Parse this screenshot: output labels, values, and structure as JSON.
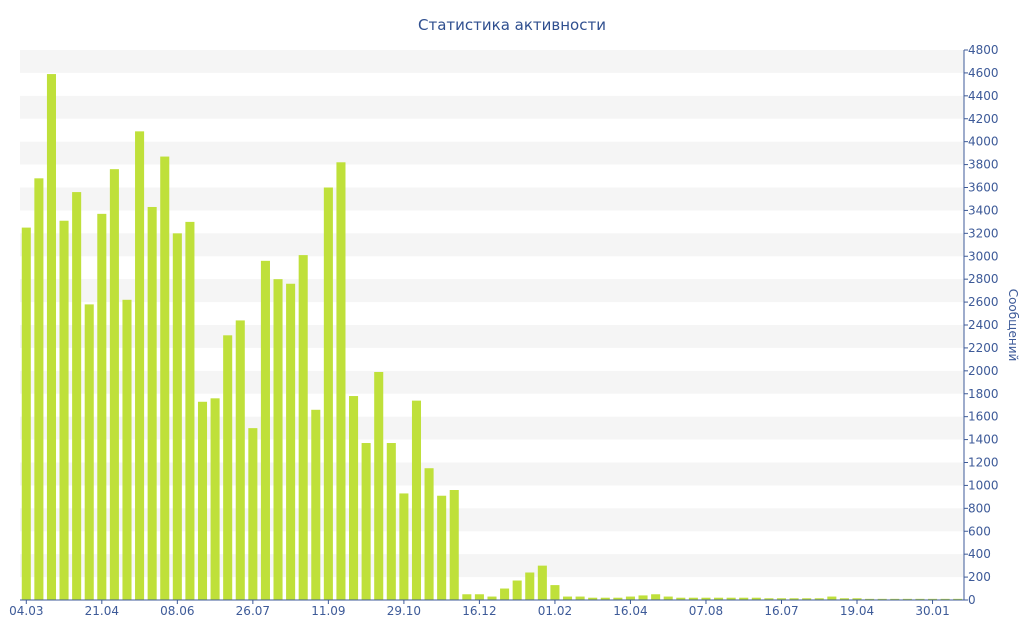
{
  "chart_data": {
    "type": "bar",
    "title": "Статистика активности",
    "ylabel": "Сообщений",
    "xlabel": "",
    "ylim": [
      0,
      4800
    ],
    "y_ticks": [
      0,
      200,
      400,
      600,
      800,
      1000,
      1200,
      1400,
      1600,
      1800,
      2000,
      2200,
      2400,
      2600,
      2800,
      3000,
      3200,
      3400,
      3600,
      3800,
      4000,
      4200,
      4400,
      4600,
      4800
    ],
    "x_tick_labels": [
      {
        "index": 0,
        "label": "04.03"
      },
      {
        "index": 6,
        "label": "21.04"
      },
      {
        "index": 12,
        "label": "08.06"
      },
      {
        "index": 18,
        "label": "26.07"
      },
      {
        "index": 24,
        "label": "11.09"
      },
      {
        "index": 30,
        "label": "29.10"
      },
      {
        "index": 36,
        "label": "16.12"
      },
      {
        "index": 42,
        "label": "01.02"
      },
      {
        "index": 48,
        "label": "16.04"
      },
      {
        "index": 54,
        "label": "07.08"
      },
      {
        "index": 60,
        "label": "16.07"
      },
      {
        "index": 66,
        "label": "19.04"
      },
      {
        "index": 72,
        "label": "30.01"
      }
    ],
    "values": [
      3250,
      3680,
      4590,
      3310,
      3560,
      2580,
      3370,
      3760,
      2620,
      4090,
      3430,
      3870,
      3200,
      3300,
      1730,
      1760,
      2310,
      2440,
      1500,
      2960,
      2800,
      2760,
      3010,
      1660,
      3600,
      3820,
      1780,
      1370,
      1990,
      1370,
      930,
      1740,
      1150,
      910,
      960,
      50,
      50,
      30,
      100,
      170,
      240,
      300,
      130,
      30,
      30,
      20,
      20,
      20,
      30,
      40,
      50,
      30,
      20,
      20,
      20,
      20,
      20,
      20,
      20,
      15,
      15,
      15,
      15,
      15,
      30,
      15,
      15,
      10,
      10,
      10,
      10,
      10,
      10,
      10,
      10
    ],
    "grid": "horizontal bands",
    "y_axis_position": "right",
    "colors": {
      "bar": "#bfe03a",
      "band": "#f5f5f5",
      "axis": "#3d5a98",
      "text": "#3d5a98"
    }
  }
}
